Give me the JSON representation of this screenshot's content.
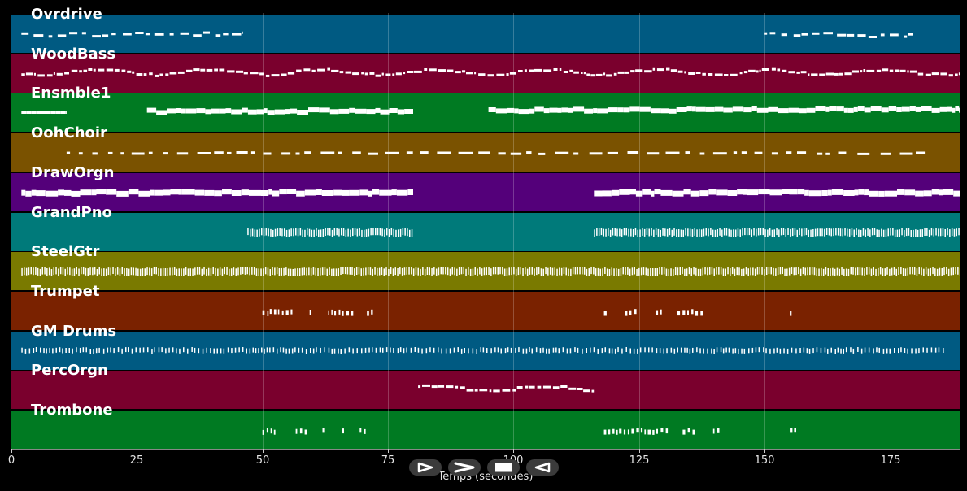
{
  "tracks": [
    {
      "name": "Ovrdrive",
      "color": "#005a82",
      "notes": [
        [
          2,
          46,
          "sparse"
        ],
        [
          150,
          180,
          "sparse"
        ]
      ]
    },
    {
      "name": "WoodBass",
      "color": "#7a002d",
      "notes": [
        [
          2,
          189,
          "wavy"
        ]
      ]
    },
    {
      "name": "Ensmble1",
      "color": "#007a22",
      "notes": [
        [
          2,
          11,
          "line"
        ],
        [
          27,
          80,
          "bar"
        ],
        [
          95,
          189,
          "bar"
        ]
      ]
    },
    {
      "name": "OohChoir",
      "color": "#7a5200",
      "notes": [
        [
          11,
          183,
          "dash"
        ]
      ]
    },
    {
      "name": "DrawOrgn",
      "color": "#54007a",
      "notes": [
        [
          2,
          80,
          "thick"
        ],
        [
          116,
          189,
          "thick"
        ]
      ]
    },
    {
      "name": "GrandPno",
      "color": "#007a7a",
      "notes": [
        [
          47,
          80,
          "dense"
        ],
        [
          116,
          189,
          "dense"
        ]
      ]
    },
    {
      "name": "SteelGtr",
      "color": "#7a7a00",
      "notes": [
        [
          2,
          189,
          "dense"
        ]
      ]
    },
    {
      "name": "Trumpet",
      "color": "#7a2200",
      "notes": [
        [
          50,
          72,
          "cluster"
        ],
        [
          118,
          141,
          "cluster"
        ],
        [
          155,
          158,
          "cluster"
        ]
      ]
    },
    {
      "name": "GM Drums",
      "color": "#005a82",
      "notes": [
        [
          2,
          186,
          "drum"
        ]
      ]
    },
    {
      "name": "PercOrgn",
      "color": "#7a002d",
      "notes": [
        [
          81,
          116,
          "wavy"
        ]
      ]
    },
    {
      "name": "Trombone",
      "color": "#007a22",
      "notes": [
        [
          50,
          72,
          "cluster"
        ],
        [
          118,
          141,
          "cluster"
        ],
        [
          155,
          158,
          "cluster"
        ]
      ]
    }
  ],
  "axis": {
    "min": 0,
    "max": 189,
    "ticks": [
      0,
      25,
      50,
      75,
      100,
      125,
      150,
      175
    ],
    "tick_labels": [
      "0",
      "25",
      "50",
      "75",
      "100",
      "125",
      "150",
      "175"
    ],
    "title": "Temps (secondes)"
  },
  "controls": [
    {
      "name": "play-icon"
    },
    {
      "name": "forward-icon"
    },
    {
      "name": "stop-icon"
    },
    {
      "name": "rewind-icon"
    }
  ]
}
